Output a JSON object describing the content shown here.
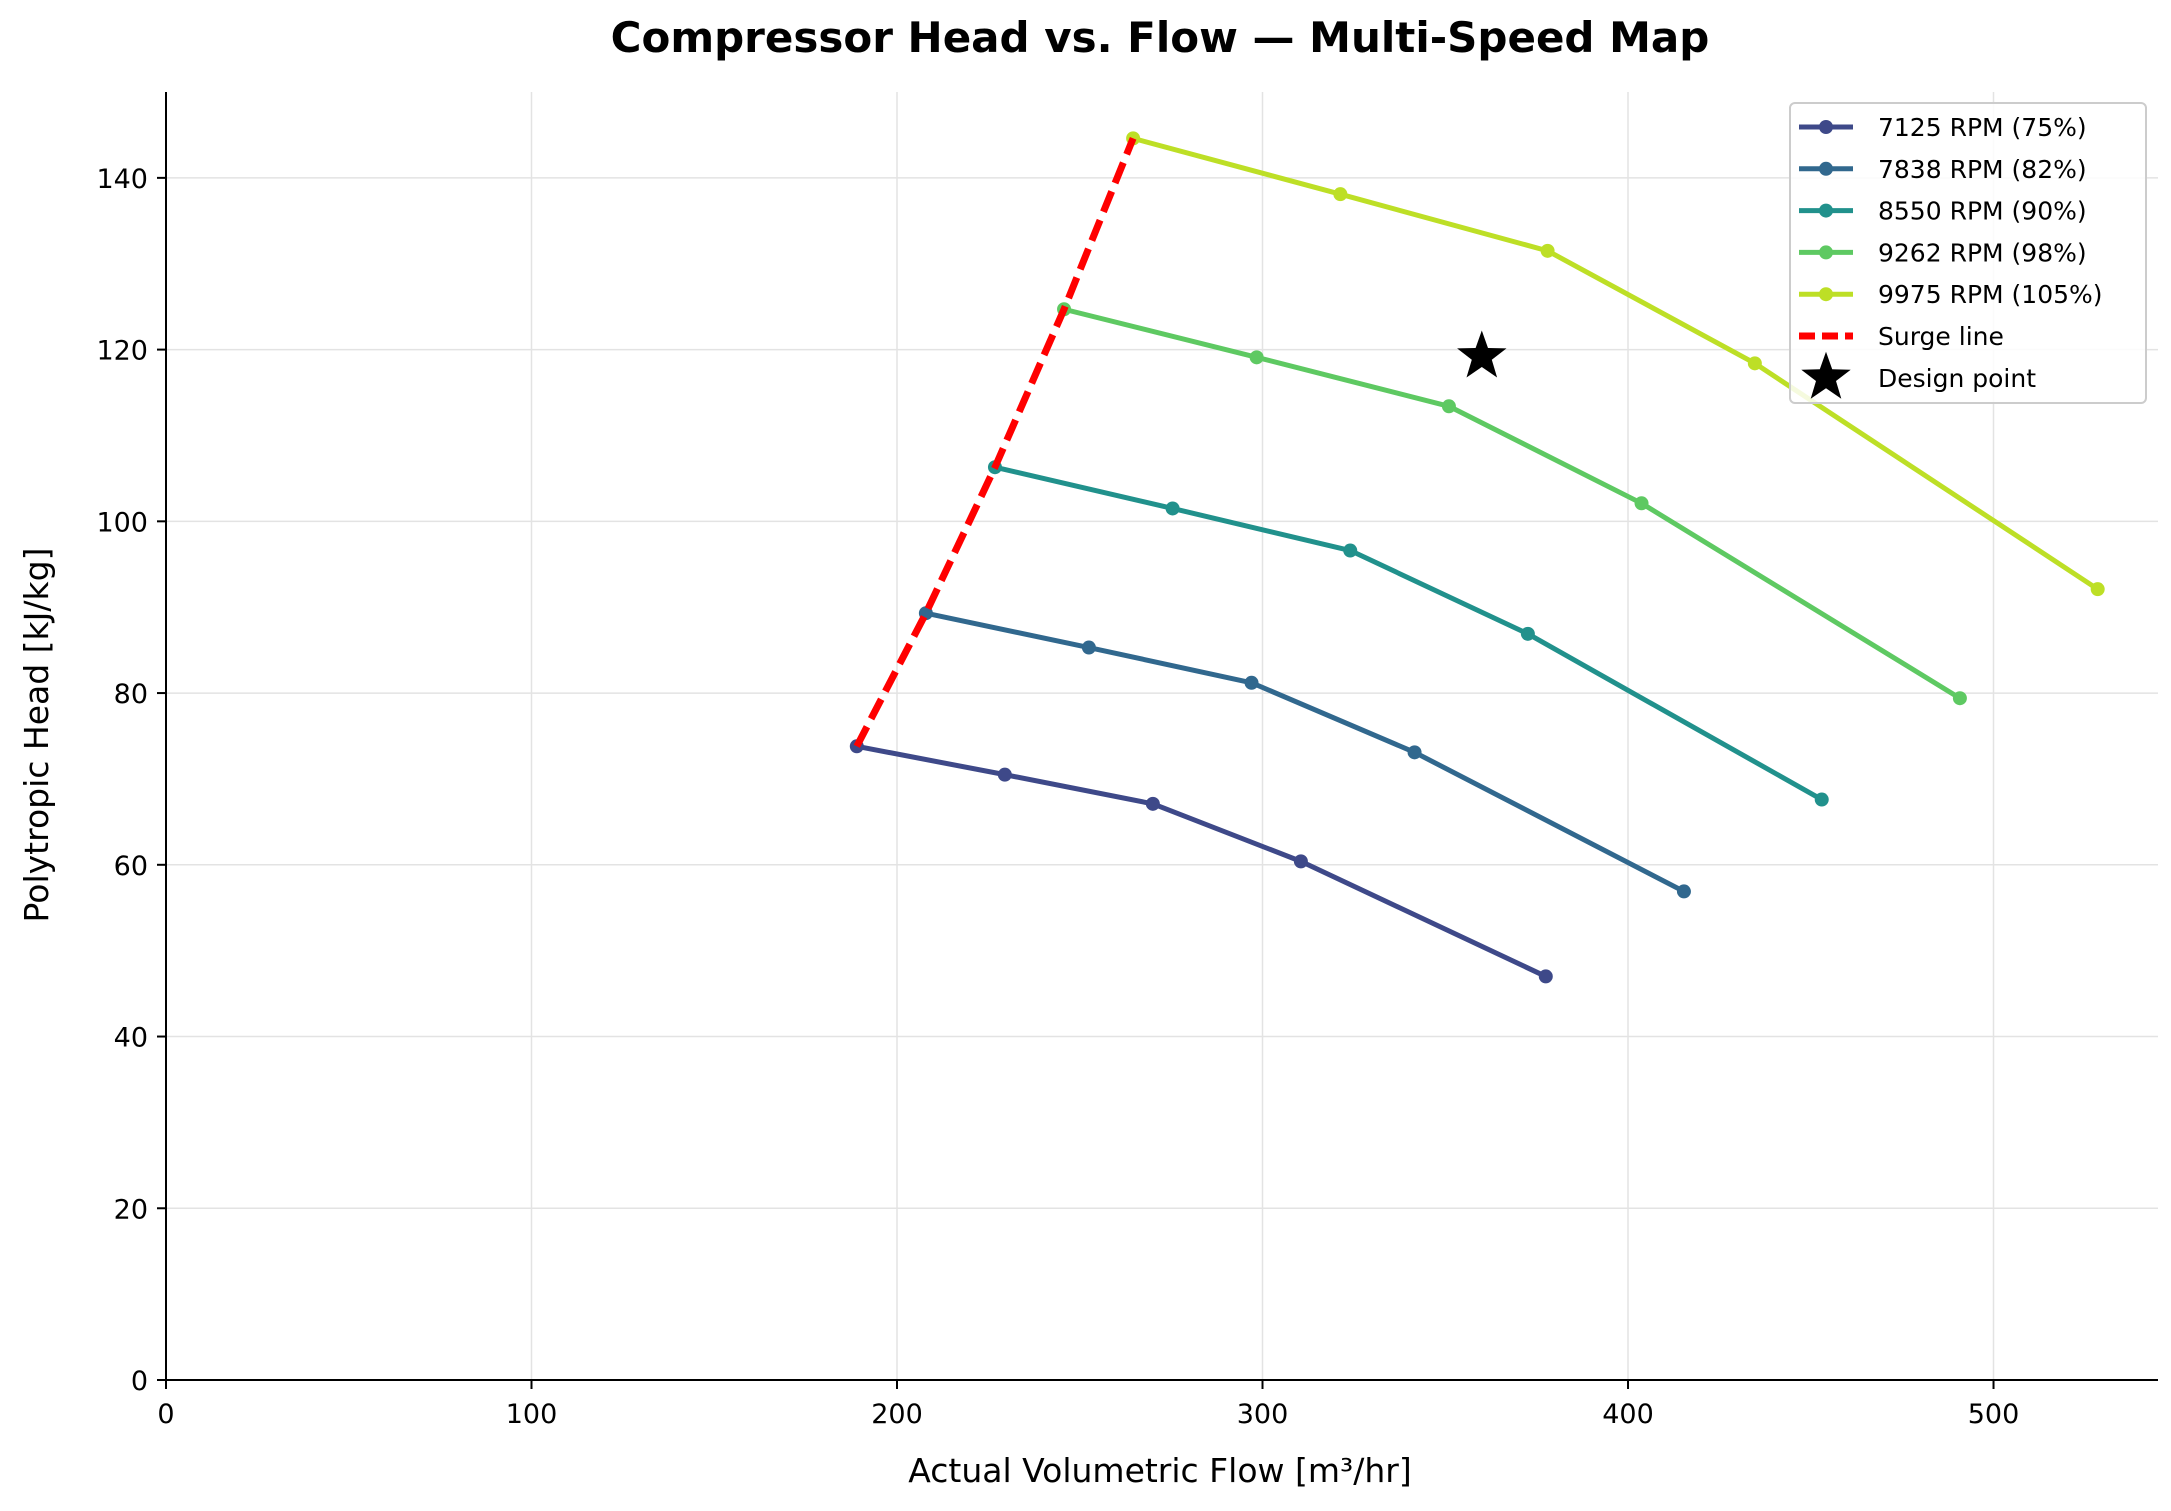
{
  "chart_data": {
    "type": "line",
    "title": "Compressor Head vs. Flow — Multi-Speed Map",
    "xlabel": "Actual Volumetric Flow [m³/hr]",
    "ylabel": "Polytropic Head [kJ/kg]",
    "xlim": [
      0,
      545
    ],
    "ylim": [
      0,
      150
    ],
    "xticks": [
      0,
      100,
      200,
      300,
      400,
      500
    ],
    "yticks": [
      0,
      20,
      40,
      60,
      80,
      100,
      120,
      140
    ],
    "grid": true,
    "legend_position": "top-right",
    "series": [
      {
        "name": "7125 RPM (75%)",
        "color": "#3e4989",
        "x": [
          189,
          229.5,
          270,
          310.5,
          377.5
        ],
        "y": [
          73.8,
          70.5,
          67.1,
          60.4,
          47.0
        ]
      },
      {
        "name": "7838 RPM (82%)",
        "color": "#31688e",
        "x": [
          207.9,
          252.5,
          297,
          341.6,
          415.3
        ],
        "y": [
          89.3,
          85.3,
          81.2,
          73.1,
          56.9
        ]
      },
      {
        "name": "8550 RPM (90%)",
        "color": "#21918c",
        "x": [
          226.8,
          275.4,
          324,
          372.6,
          453
        ],
        "y": [
          106.3,
          101.5,
          96.6,
          86.9,
          67.6
        ]
      },
      {
        "name": "9262 RPM (98%)",
        "color": "#5ec962",
        "x": [
          245.7,
          298.4,
          351,
          403.7,
          490.8
        ],
        "y": [
          124.7,
          119.1,
          113.4,
          102.1,
          79.4
        ]
      },
      {
        "name": "9975 RPM (105%)",
        "color": "#bddf26",
        "x": [
          264.6,
          321.3,
          378,
          434.7,
          528.5
        ],
        "y": [
          144.6,
          138.1,
          131.5,
          118.4,
          92.1
        ]
      }
    ],
    "surge_line": {
      "name": "Surge line",
      "color": "#ff0000",
      "x": [
        189,
        207.9,
        226.8,
        245.7,
        264.6
      ],
      "y": [
        73.8,
        89.3,
        106.3,
        124.7,
        144.6
      ]
    },
    "design_point": {
      "name": "Design point",
      "color": "#000000",
      "x": 360,
      "y": 119.2
    }
  }
}
